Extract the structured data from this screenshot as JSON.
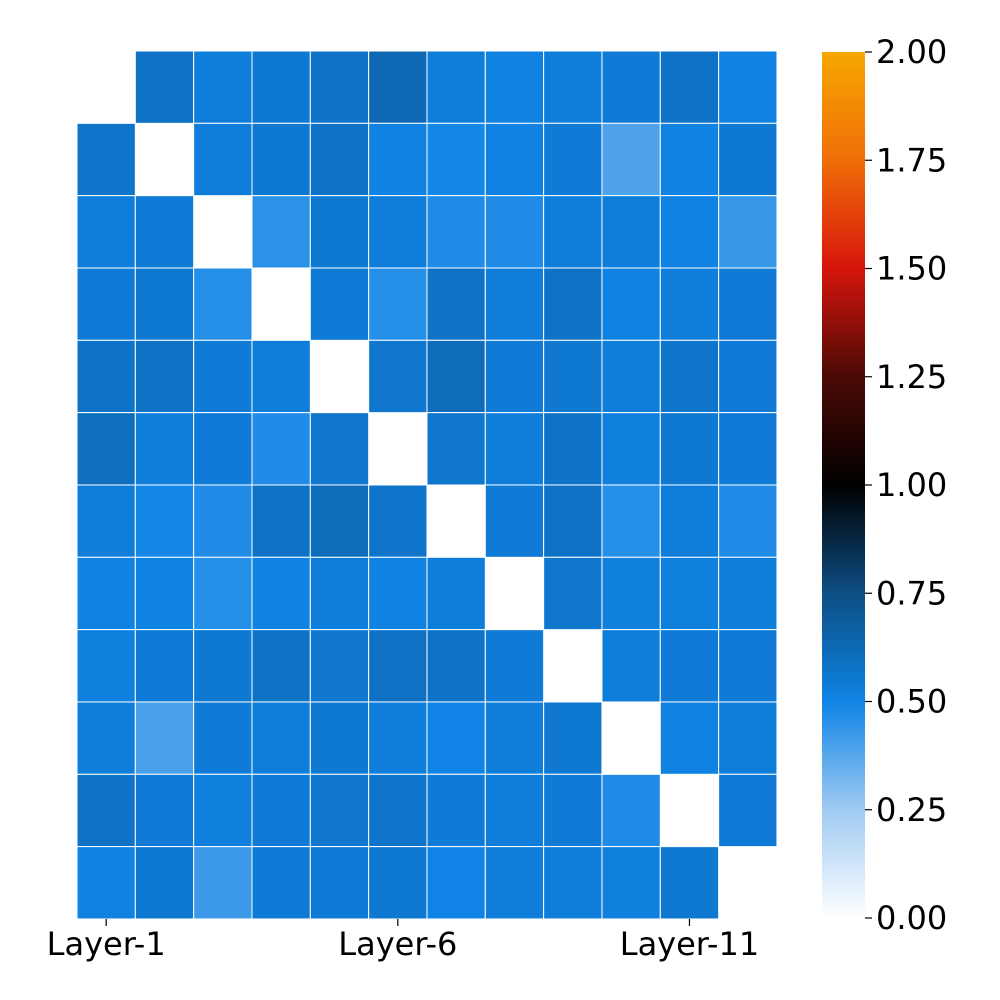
{
  "chart_data": {
    "type": "heatmap",
    "title": "",
    "xlabel": "",
    "ylabel": "",
    "x_tick_labels": [
      "Layer-1",
      "Layer-6",
      "Layer-11"
    ],
    "x_tick_indices": [
      0,
      5,
      10
    ],
    "y_tick_labels": [],
    "matrix": [
      [
        null,
        0.58,
        0.53,
        0.55,
        0.58,
        0.63,
        0.53,
        0.51,
        0.53,
        0.54,
        0.58,
        0.51
      ],
      [
        0.57,
        null,
        0.53,
        0.55,
        0.58,
        0.51,
        0.49,
        0.51,
        0.54,
        0.39,
        0.51,
        0.55
      ],
      [
        0.53,
        0.54,
        null,
        0.45,
        0.55,
        0.53,
        0.47,
        0.47,
        0.53,
        0.53,
        0.51,
        0.43
      ],
      [
        0.54,
        0.55,
        0.46,
        null,
        0.54,
        0.46,
        0.58,
        0.53,
        0.58,
        0.51,
        0.53,
        0.54
      ],
      [
        0.58,
        0.58,
        0.54,
        0.53,
        null,
        0.56,
        0.61,
        0.54,
        0.55,
        0.53,
        0.57,
        0.54
      ],
      [
        0.6,
        0.53,
        0.54,
        0.47,
        0.56,
        null,
        0.56,
        0.53,
        0.58,
        0.52,
        0.55,
        0.54
      ],
      [
        0.53,
        0.49,
        0.47,
        0.58,
        0.61,
        0.57,
        null,
        0.54,
        0.59,
        0.46,
        0.53,
        0.47
      ],
      [
        0.51,
        0.51,
        0.46,
        0.51,
        0.53,
        0.51,
        0.53,
        null,
        0.56,
        0.52,
        0.52,
        0.53
      ],
      [
        0.52,
        0.54,
        0.55,
        0.58,
        0.56,
        0.59,
        0.58,
        0.54,
        null,
        0.53,
        0.54,
        0.54
      ],
      [
        0.53,
        0.4,
        0.54,
        0.53,
        0.55,
        0.53,
        0.5,
        0.53,
        0.55,
        null,
        0.51,
        0.53
      ],
      [
        0.58,
        0.54,
        0.52,
        0.54,
        0.56,
        0.57,
        0.54,
        0.53,
        0.54,
        0.47,
        null,
        0.54
      ],
      [
        0.51,
        0.55,
        0.42,
        0.54,
        0.54,
        0.55,
        0.5,
        0.53,
        0.53,
        0.52,
        0.55,
        null
      ]
    ],
    "colorbar": {
      "min": 0,
      "max": 2,
      "ticks": [
        "0.00",
        "0.25",
        "0.50",
        "0.75",
        "1.00",
        "1.25",
        "1.50",
        "1.75",
        "2.00"
      ],
      "stops": [
        {
          "value": 0.0,
          "color": "#ffffff"
        },
        {
          "value": 0.25,
          "color": "#9fcaf2"
        },
        {
          "value": 0.5,
          "color": "#0f84e6"
        },
        {
          "value": 0.75,
          "color": "#0d4e84"
        },
        {
          "value": 1.0,
          "color": "#000000"
        },
        {
          "value": 1.25,
          "color": "#4c0a05"
        },
        {
          "value": 1.5,
          "color": "#d6150c"
        },
        {
          "value": 1.75,
          "color": "#ef6e08"
        },
        {
          "value": 2.0,
          "color": "#f7a700"
        }
      ]
    },
    "grid": true,
    "diagonal_masked": true
  }
}
